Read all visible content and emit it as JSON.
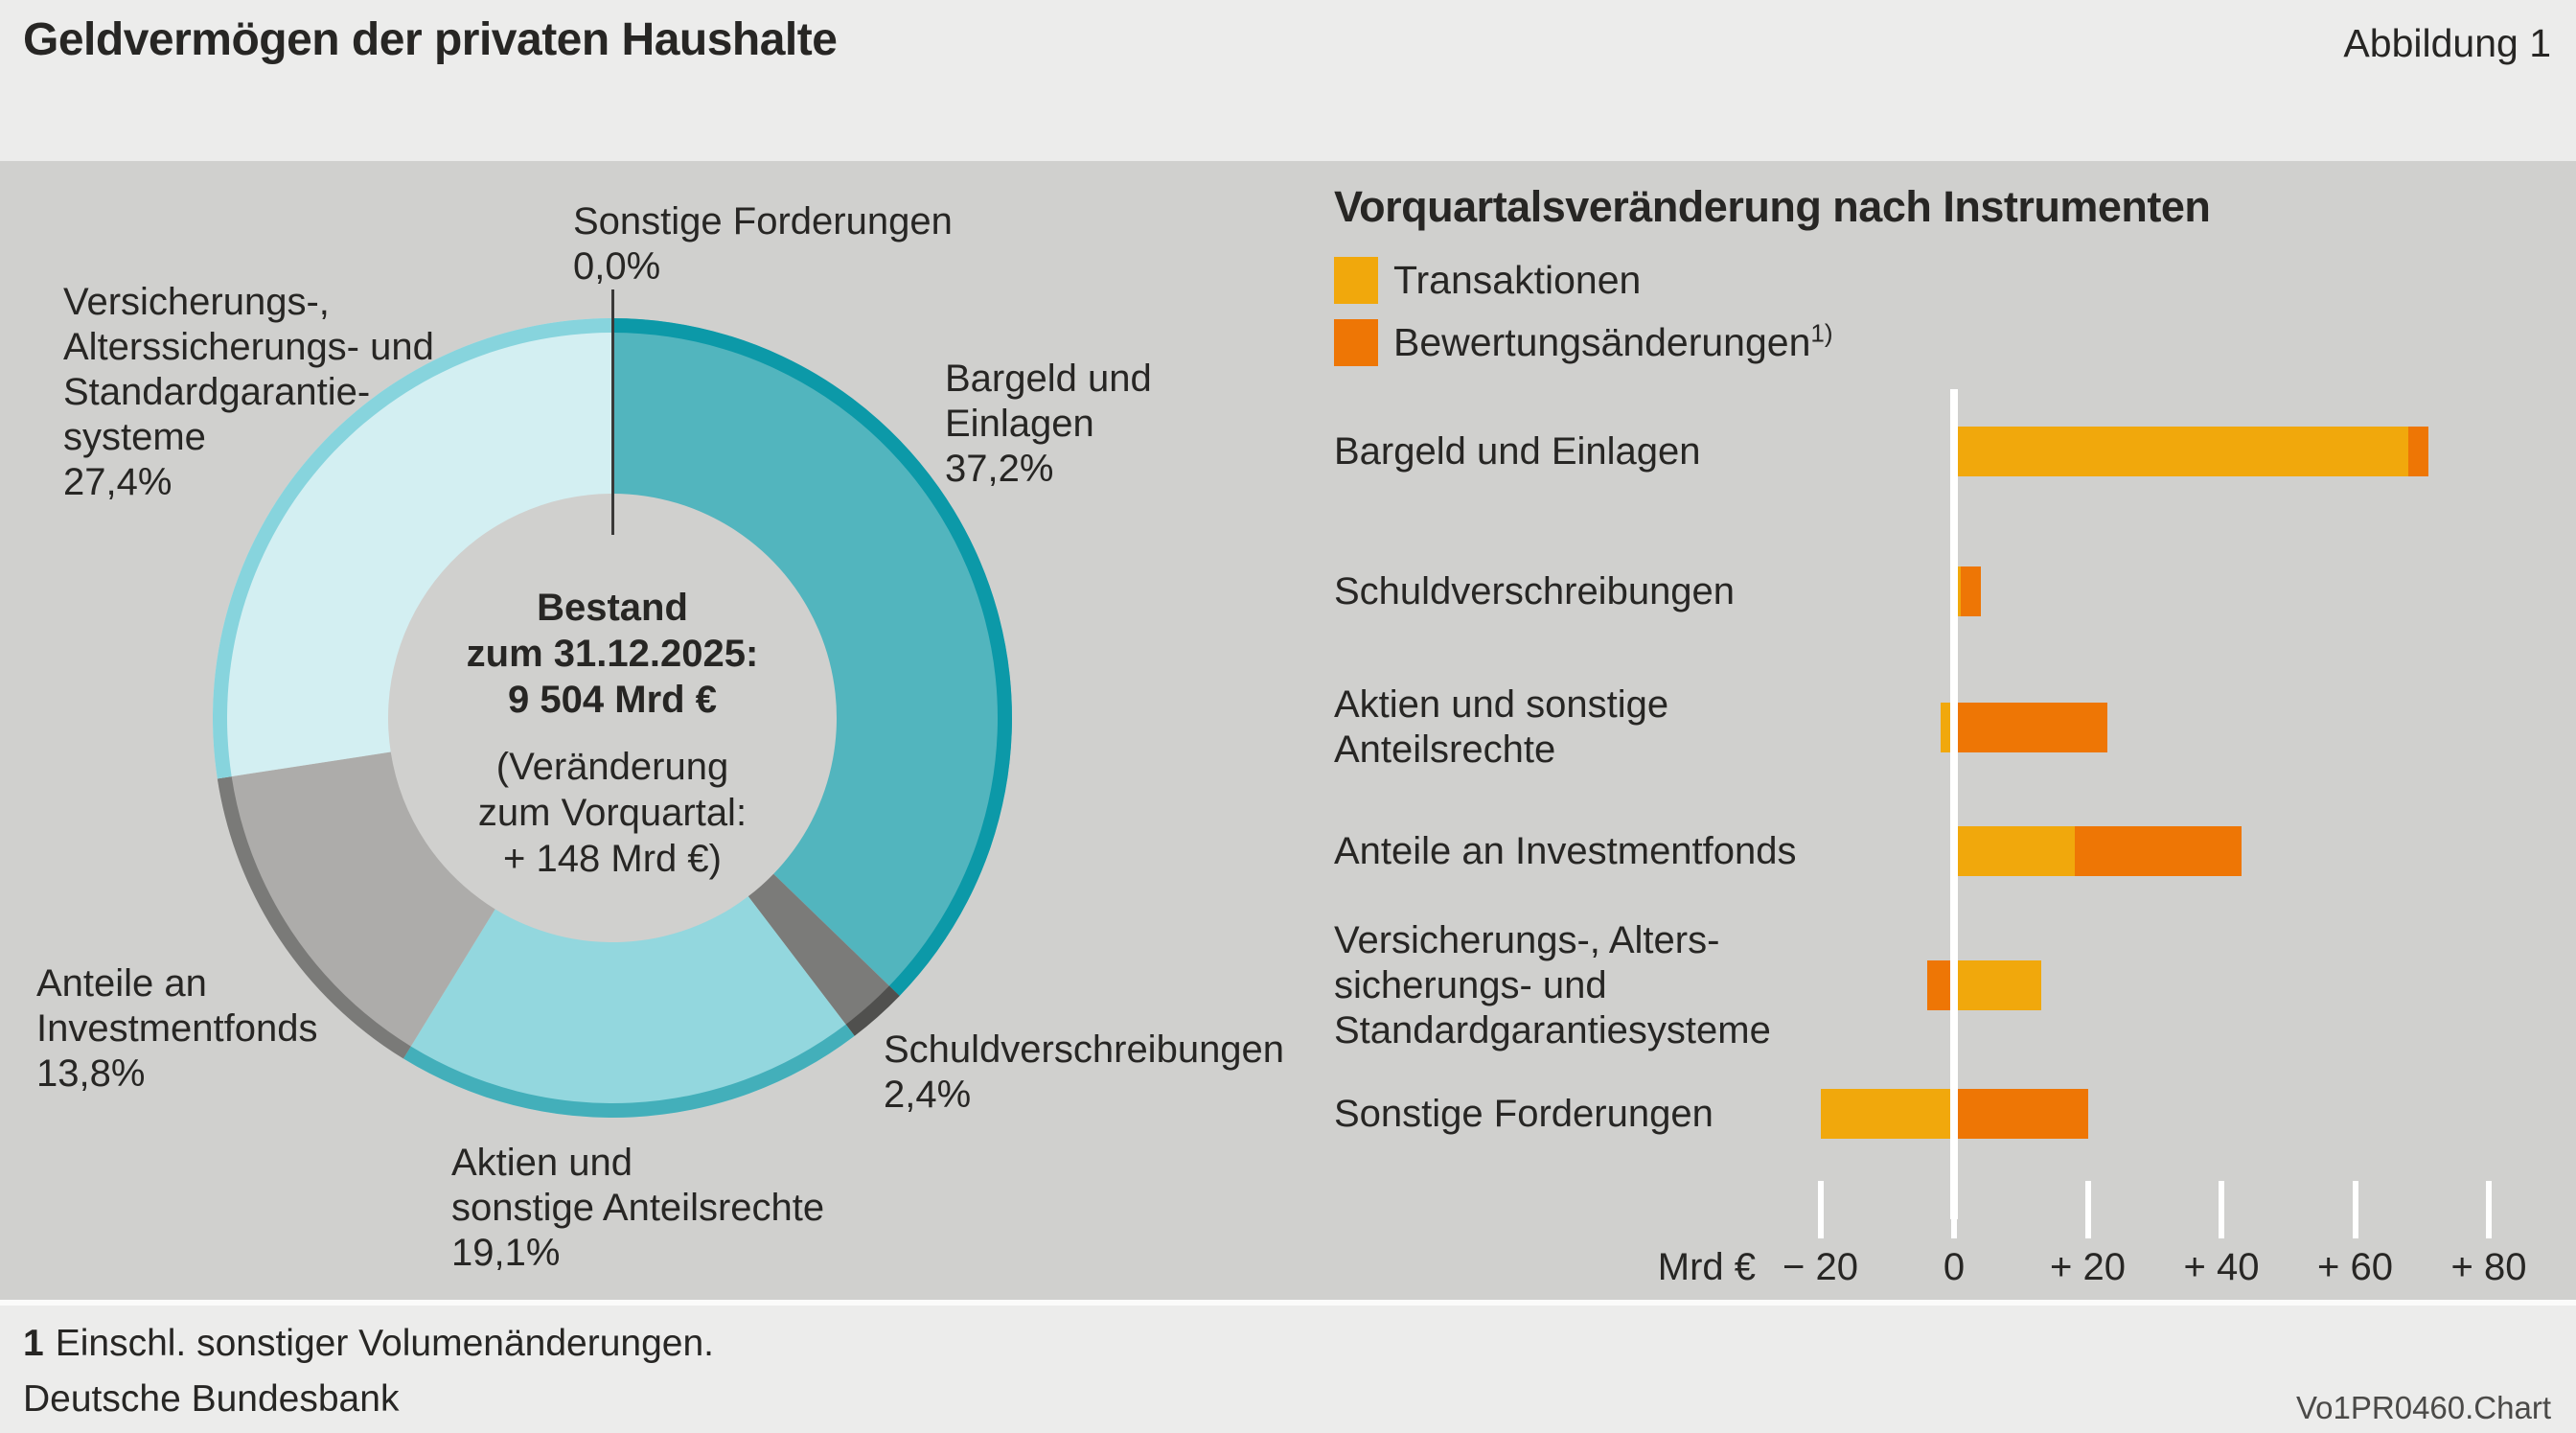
{
  "header": {
    "title": "Geldvermögen der privaten Haushalte",
    "figure_label": "Abbildung 1"
  },
  "footer": {
    "footnote_marker": "1",
    "footnote_text": "Einschl. sonstiger Volumenänderungen.",
    "source": "Deutsche Bundesbank",
    "chart_code": "Vo1PR0460.Chart"
  },
  "colors": {
    "page_bg": "#ECECEB",
    "chart_bg": "#D0D0CE",
    "text": "#272624",
    "zero_line": "#FFFFFF",
    "transaktionen_yellow": "#F1A80C",
    "bewertungen_orange": "#EE7605"
  },
  "chart_data": [
    {
      "type": "pie",
      "subtype": "donut",
      "title": "Geldvermögen der privaten Haushalte",
      "unit": "%",
      "center_label": {
        "bold_lines": [
          "Bestand",
          "zum 31.12.2025:",
          "9 504 Mrd €"
        ],
        "regular_lines": [
          "(Veränderung",
          "zum Vorquartal:",
          "+ 148 Mrd €)"
        ]
      },
      "segments": [
        {
          "name": "Bargeld und Einlagen",
          "label_lines": [
            "Bargeld und",
            "Einlagen"
          ],
          "pct_label": "37,2%",
          "value": 37.2,
          "fill": "#52B5BE",
          "band": "#0C99A8"
        },
        {
          "name": "Schuldverschreibungen",
          "label_lines": [
            "Schuldverschreibungen"
          ],
          "pct_label": "2,4%",
          "value": 2.4,
          "fill": "#7B7B79",
          "band": "#50504E"
        },
        {
          "name": "Aktien und sonstige Anteilsrechte",
          "label_lines": [
            "Aktien und",
            "sonstige Anteilsrechte"
          ],
          "pct_label": "19,1%",
          "value": 19.1,
          "fill": "#93D7DE",
          "band": "#43AFBA"
        },
        {
          "name": "Anteile an Investmentfonds",
          "label_lines": [
            "Anteile an",
            "Investmentfonds"
          ],
          "pct_label": "13,8%",
          "value": 13.8,
          "fill": "#ADACAA",
          "band": "#7A7A78"
        },
        {
          "name": "Versicherungs-, Alterssicherungs- und Standardgarantiesysteme",
          "label_lines": [
            "Versicherungs-,",
            "Alterssicherungs- und",
            "Standardgarantie-",
            "systeme"
          ],
          "pct_label": "27,4%",
          "value": 27.4,
          "fill": "#D3EFF2",
          "band": "#87D4DD"
        },
        {
          "name": "Sonstige Forderungen",
          "label_lines": [
            "Sonstige Forderungen"
          ],
          "pct_label": "0,0%",
          "value": 0.0,
          "fill": "#D0D0CE",
          "band": "#D0D0CE"
        }
      ]
    },
    {
      "type": "bar",
      "orientation": "horizontal",
      "stacked": true,
      "title": "Vorquartalsveränderung nach Instrumenten",
      "unit": "Mrd €",
      "series": [
        {
          "name": "Transaktionen",
          "color": "#F1A80C"
        },
        {
          "name": "Bewertungsänderungen",
          "sup": "1)",
          "color": "#EE7605"
        }
      ],
      "rows": [
        {
          "category": "Bargeld und Einlagen",
          "label_lines": [
            "Bargeld und Einlagen"
          ],
          "transaktionen": 68,
          "bewertungen": 3
        },
        {
          "category": "Schuldverschreibungen",
          "label_lines": [
            "Schuldverschreibungen"
          ],
          "transaktionen": 1,
          "bewertungen": 3
        },
        {
          "category": "Aktien und sonstige Anteilsrechte",
          "label_lines": [
            "Aktien und sonstige",
            "Anteilsrechte"
          ],
          "transaktionen": -2,
          "bewertungen": 23
        },
        {
          "category": "Anteile an Investmentfonds",
          "label_lines": [
            "Anteile an Investmentfonds"
          ],
          "transaktionen": 18,
          "bewertungen": 25
        },
        {
          "category": "Versicherungs-, Alterssicherungs- und Standardgarantiesysteme",
          "label_lines": [
            "Versicherungs-, Alters-",
            "sicherungs- und",
            "Standardgarantiesysteme"
          ],
          "transaktionen": 13,
          "bewertungen": -4
        },
        {
          "category": "Sonstige Forderungen",
          "label_lines": [
            "Sonstige Forderungen"
          ],
          "transaktionen": -20,
          "bewertungen": 20
        }
      ],
      "axis": {
        "unit_label": "Mrd €",
        "min": -25,
        "max": 85,
        "grid": false,
        "ticks": [
          {
            "value": -20,
            "label": "− 20"
          },
          {
            "value": 0,
            "label": "0"
          },
          {
            "value": 20,
            "label": "+ 20"
          },
          {
            "value": 40,
            "label": "+ 40"
          },
          {
            "value": 60,
            "label": "+ 60"
          },
          {
            "value": 80,
            "label": "+ 80"
          }
        ]
      }
    }
  ]
}
